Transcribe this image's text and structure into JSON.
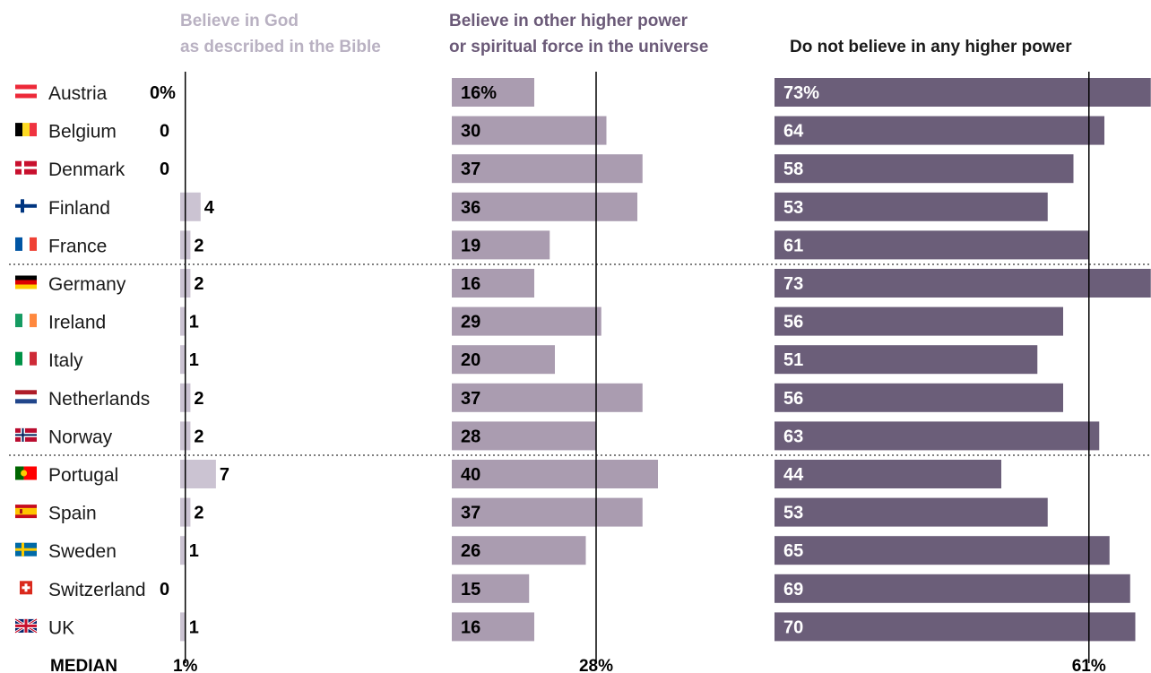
{
  "chart_data": {
    "type": "bar",
    "categories": [
      "Austria",
      "Belgium",
      "Denmark",
      "Finland",
      "France",
      "Germany",
      "Ireland",
      "Italy",
      "Netherlands",
      "Norway",
      "Portugal",
      "Spain",
      "Sweden",
      "Switzerland",
      "UK"
    ],
    "flags": [
      "austria-flag-icon",
      "belgium-flag-icon",
      "denmark-flag-icon",
      "finland-flag-icon",
      "france-flag-icon",
      "germany-flag-icon",
      "ireland-flag-icon",
      "italy-flag-icon",
      "netherlands-flag-icon",
      "norway-flag-icon",
      "portugal-flag-icon",
      "spain-flag-icon",
      "sweden-flag-icon",
      "switzerland-flag-icon",
      "uk-flag-icon"
    ],
    "series": [
      {
        "name_lines": [
          "Believe in God",
          "as described in the Bible"
        ],
        "color": "#cbc3d2",
        "header_color": "#b9b1c2",
        "values": [
          0,
          0,
          0,
          4,
          2,
          2,
          1,
          1,
          2,
          2,
          7,
          2,
          1,
          0,
          1
        ],
        "labels": [
          "0%",
          "0",
          "0",
          "4",
          "2",
          "2",
          "1",
          "1",
          "2",
          "2",
          "7",
          "2",
          "1",
          "0",
          "1"
        ],
        "median": 1,
        "median_label": "1%"
      },
      {
        "name_lines": [
          "Believe in other higher power",
          "or spiritual force in the universe"
        ],
        "color": "#aa9cb0",
        "header_color": "#6b5a78",
        "values": [
          16,
          30,
          37,
          36,
          19,
          16,
          29,
          20,
          37,
          28,
          40,
          37,
          26,
          15,
          16
        ],
        "labels": [
          "16%",
          "30",
          "37",
          "36",
          "19",
          "16",
          "29",
          "20",
          "37",
          "28",
          "40",
          "37",
          "26",
          "15",
          "16"
        ],
        "median": 28,
        "median_label": "28%"
      },
      {
        "name_lines": [
          "Do not believe in any higher power"
        ],
        "color": "#6b5e79",
        "header_color": "#1a1a1a",
        "values": [
          73,
          64,
          58,
          53,
          61,
          73,
          56,
          51,
          56,
          63,
          44,
          53,
          65,
          69,
          70
        ],
        "labels": [
          "73%",
          "64",
          "58",
          "53",
          "61",
          "73",
          "56",
          "51",
          "56",
          "63",
          "44",
          "53",
          "65",
          "69",
          "70"
        ],
        "median": 61,
        "median_label": "61%"
      }
    ],
    "median_row_label": "MEDIAN",
    "group_separators_after": [
      "France",
      "Norway"
    ]
  }
}
